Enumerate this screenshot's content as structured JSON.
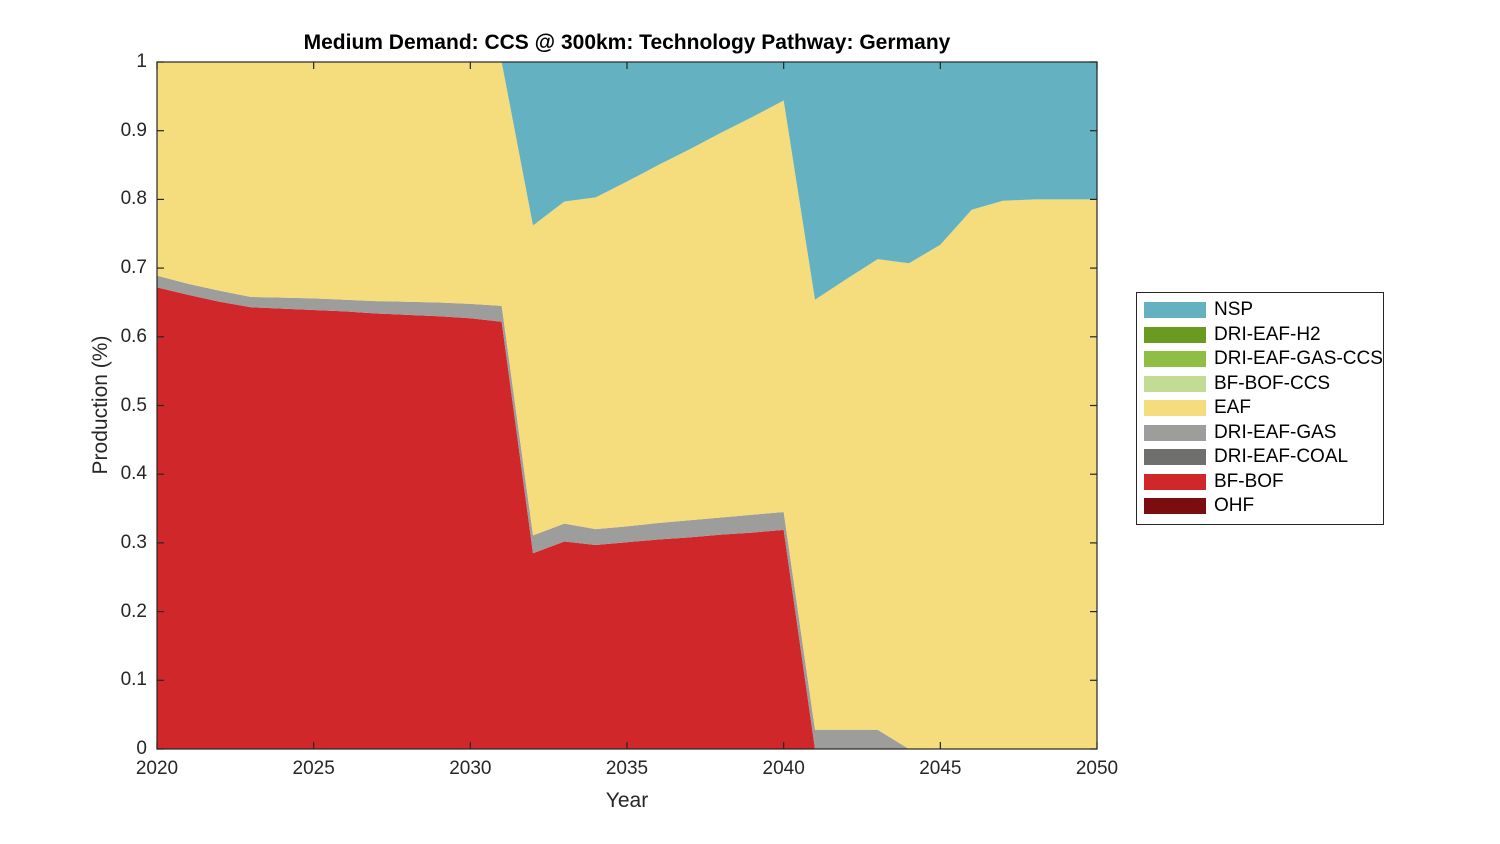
{
  "chart_data": {
    "type": "area",
    "stacked": true,
    "title": "Medium Demand: CCS @ 300km: Technology Pathway: Germany",
    "xlabel": "Year",
    "ylabel": "Production (%)",
    "xlim": [
      2020,
      2050
    ],
    "ylim": [
      0,
      1
    ],
    "grid": false,
    "axis_color": "#262626",
    "background_color": "#ffffff",
    "x_ticks": [
      "2020",
      "2025",
      "2030",
      "2035",
      "2040",
      "2045",
      "2050"
    ],
    "x_tick_values": [
      2020,
      2025,
      2030,
      2035,
      2040,
      2045,
      2050
    ],
    "y_ticks": [
      "0",
      "0.1",
      "0.2",
      "0.3",
      "0.4",
      "0.5",
      "0.6",
      "0.7",
      "0.8",
      "0.9",
      "1"
    ],
    "y_tick_values": [
      0,
      0.1,
      0.2,
      0.3,
      0.4,
      0.5,
      0.6,
      0.7,
      0.8,
      0.9,
      1
    ],
    "x": [
      2020,
      2021,
      2022,
      2023,
      2024,
      2025,
      2026,
      2027,
      2028,
      2029,
      2030,
      2031,
      2032,
      2033,
      2034,
      2035,
      2036,
      2037,
      2038,
      2039,
      2040,
      2041,
      2042,
      2043,
      2044,
      2045,
      2046,
      2047,
      2048,
      2049,
      2050
    ],
    "stack_order": "bottom_to_top",
    "series": [
      {
        "name": "OHF",
        "color": "#7C0D0F",
        "values": [
          0,
          0,
          0,
          0,
          0,
          0,
          0,
          0,
          0,
          0,
          0,
          0,
          0,
          0,
          0,
          0,
          0,
          0,
          0,
          0,
          0,
          0,
          0,
          0,
          0,
          0,
          0,
          0,
          0,
          0,
          0
        ]
      },
      {
        "name": "BF-BOF",
        "color": "#D0282A",
        "values": [
          0.672,
          0.661,
          0.651,
          0.643,
          0.641,
          0.639,
          0.637,
          0.634,
          0.632,
          0.63,
          0.627,
          0.622,
          0.285,
          0.302,
          0.297,
          0.301,
          0.305,
          0.308,
          0.312,
          0.315,
          0.319,
          0,
          0,
          0,
          0,
          0,
          0,
          0,
          0,
          0,
          0
        ]
      },
      {
        "name": "DRI-EAF-COAL",
        "color": "#6F6F6D",
        "values": [
          0,
          0,
          0,
          0,
          0,
          0,
          0,
          0,
          0,
          0,
          0,
          0,
          0,
          0,
          0,
          0,
          0,
          0,
          0,
          0,
          0,
          0,
          0,
          0,
          0,
          0,
          0,
          0,
          0,
          0,
          0
        ]
      },
      {
        "name": "DRI-EAF-GAS",
        "color": "#9D9D9B",
        "values": [
          0.017,
          0.016,
          0.016,
          0.015,
          0.016,
          0.017,
          0.017,
          0.018,
          0.019,
          0.02,
          0.021,
          0.023,
          0.026,
          0.026,
          0.023,
          0.023,
          0.024,
          0.025,
          0.025,
          0.026,
          0.026,
          0.028,
          0.028,
          0.028,
          0,
          0,
          0,
          0,
          0,
          0,
          0
        ]
      },
      {
        "name": "EAF",
        "color": "#F5DC7D",
        "values": [
          0.311,
          0.323,
          0.333,
          0.342,
          0.343,
          0.344,
          0.346,
          0.348,
          0.349,
          0.35,
          0.352,
          0.355,
          0.451,
          0.469,
          0.483,
          0.502,
          0.521,
          0.54,
          0.56,
          0.579,
          0.599,
          0.626,
          0.656,
          0.685,
          0.707,
          0.734,
          0.785,
          0.798,
          0.8,
          0.8,
          0.8
        ]
      },
      {
        "name": "BF-BOF-CCS",
        "color": "#C3DC93",
        "values": [
          0,
          0,
          0,
          0,
          0,
          0,
          0,
          0,
          0,
          0,
          0,
          0,
          0,
          0,
          0,
          0,
          0,
          0,
          0,
          0,
          0,
          0,
          0,
          0,
          0,
          0,
          0,
          0,
          0,
          0,
          0
        ]
      },
      {
        "name": "DRI-EAF-GAS-CCS",
        "color": "#8FBE44",
        "values": [
          0,
          0,
          0,
          0,
          0,
          0,
          0,
          0,
          0,
          0,
          0,
          0,
          0,
          0,
          0,
          0,
          0,
          0,
          0,
          0,
          0,
          0,
          0,
          0,
          0,
          0,
          0,
          0,
          0,
          0,
          0
        ]
      },
      {
        "name": "DRI-EAF-H2",
        "color": "#6A9A20",
        "values": [
          0,
          0,
          0,
          0,
          0,
          0,
          0,
          0,
          0,
          0,
          0,
          0,
          0,
          0,
          0,
          0,
          0,
          0,
          0,
          0,
          0,
          0,
          0,
          0,
          0,
          0,
          0,
          0,
          0,
          0,
          0
        ]
      },
      {
        "name": "NSP",
        "color": "#63B1C1",
        "values": [
          0,
          0,
          0,
          0,
          0,
          0,
          0,
          0,
          0,
          0,
          0,
          0,
          0.238,
          0.203,
          0.197,
          0.174,
          0.15,
          0.127,
          0.103,
          0.08,
          0.056,
          0.346,
          0.316,
          0.287,
          0.293,
          0.266,
          0.215,
          0.202,
          0.2,
          0.2,
          0.2
        ]
      }
    ],
    "legend": {
      "position": "right-outside",
      "entries_top_to_bottom": [
        "NSP",
        "DRI-EAF-H2",
        "DRI-EAF-GAS-CCS",
        "BF-BOF-CCS",
        "EAF",
        "DRI-EAF-GAS",
        "DRI-EAF-COAL",
        "BF-BOF",
        "OHF"
      ]
    }
  }
}
